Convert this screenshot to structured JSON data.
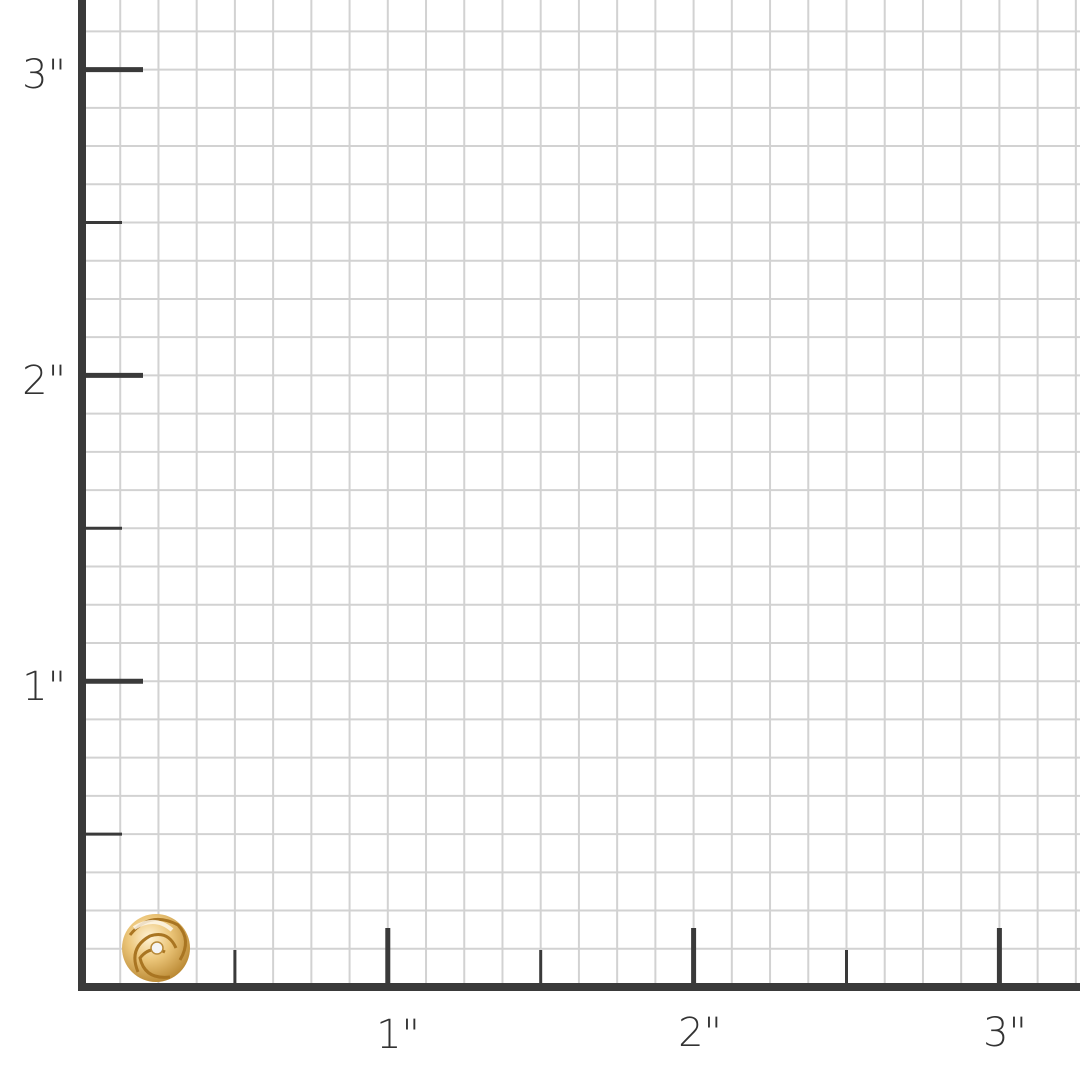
{
  "colors": {
    "grid": "#d2d2d2",
    "axis": "#3a3a3a",
    "background": "#ffffff",
    "gold": "#e2b867"
  },
  "units": "inch",
  "grid_subdivisions_per_inch": 8,
  "x_axis": {
    "labels": [
      "1\"",
      "2\"",
      "3\""
    ]
  },
  "y_axis": {
    "labels": [
      "1\"",
      "2\"",
      "3\""
    ]
  },
  "product": {
    "icon": "gold-love-knot-earring-icon",
    "approx_size_inch": 0.23
  }
}
